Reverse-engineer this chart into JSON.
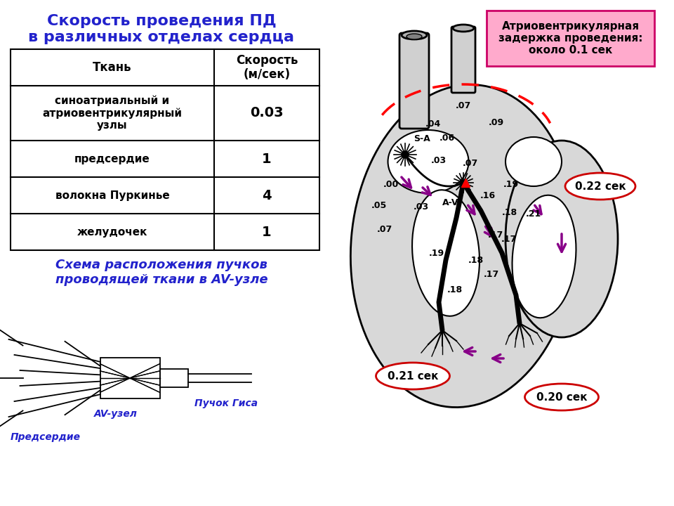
{
  "title": "Скорость проведения ПД\nв различных отделах сердца",
  "title_color": "#2222cc",
  "table_col1_header": "Ткань",
  "table_col2_header": "Скорость\n(м/сек)",
  "table_rows": [
    [
      "синоатриальный и\nатриовентрикулярный\nузлы",
      "0.03"
    ],
    [
      "предсердие",
      "1"
    ],
    [
      "волокна Пуркинье",
      "4"
    ],
    [
      "желудочек",
      "1"
    ]
  ],
  "subtitle": "Схема расположения пучков\nпроводящей ткани в AV-узле",
  "subtitle_color": "#2222cc",
  "label_av_node": "AV-узел",
  "label_his_bundle": "Пучок Гиса",
  "label_atrium": "Предсердие",
  "av_delay_text": "Атриовентрикулярная\nзадержка проведения:\nоколо 0.1 сек",
  "av_delay_bg": "#ffaacc",
  "av_delay_border": "#cc0066",
  "label_022": "0.22 сек",
  "label_021": "0.21 сек",
  "label_020": "0.20 сек",
  "sa_label": "S-A",
  "av_label": "A-V",
  "purple_color": "#880088",
  "red_color": "#cc0000",
  "bg_color": "#ffffff"
}
